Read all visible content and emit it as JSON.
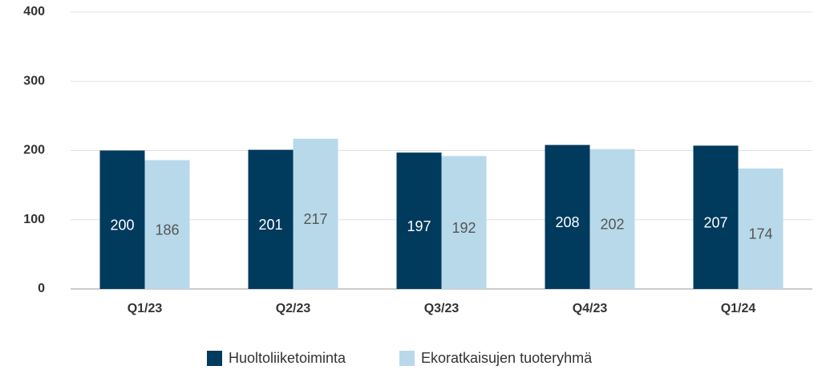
{
  "chart_data": {
    "type": "bar",
    "categories": [
      "Q1/23",
      "Q2/23",
      "Q3/23",
      "Q4/23",
      "Q1/24"
    ],
    "series": [
      {
        "name": "Huoltoliiketoiminta",
        "color": "#003a5d",
        "values": [
          200,
          201,
          197,
          208,
          207
        ]
      },
      {
        "name": "Ekoratkaisujen tuoteryhmä",
        "color": "#b8d9ea",
        "values": [
          186,
          217,
          192,
          202,
          174
        ]
      }
    ],
    "ylim": [
      0,
      400
    ],
    "yticks": [
      0,
      100,
      200,
      300,
      400
    ],
    "grid": true
  }
}
